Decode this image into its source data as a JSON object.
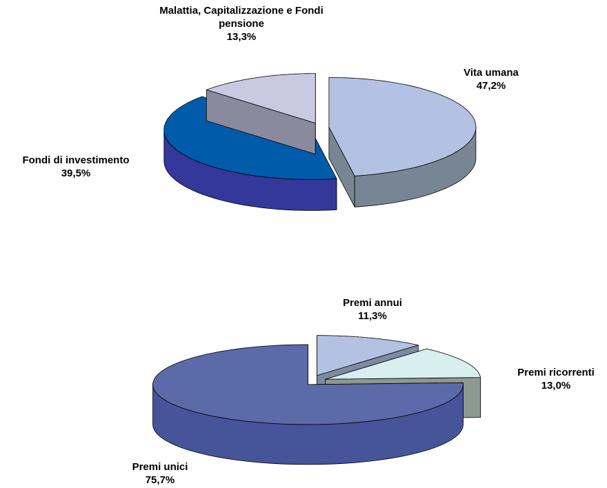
{
  "chart_data": [
    {
      "type": "pie",
      "categories": [
        "Vita umana",
        "Fondi di investimento",
        "Malattia, Capitalizzazione e Fondi pensione"
      ],
      "values": [
        47.2,
        39.5,
        13.3
      ],
      "value_labels": [
        "47,2%",
        "39,5%",
        "13,3%"
      ],
      "colors": [
        "#b3c2e2",
        "#005bab",
        "#c9c9e2"
      ],
      "side_colors": [
        "#788694",
        "#33389a",
        "#8a8a9e"
      ]
    },
    {
      "type": "pie",
      "categories": [
        "Premi annui",
        "Premi ricorrenti",
        "Premi unici"
      ],
      "values": [
        11.3,
        13.0,
        75.7
      ],
      "value_labels": [
        "11,3%",
        "13,0%",
        "75,7%"
      ],
      "colors": [
        "#b3c2e2",
        "#d9eeee",
        "#5b6aa8"
      ],
      "side_colors": [
        "#7e8aa0",
        "#8c9890",
        "#46559a"
      ]
    }
  ]
}
